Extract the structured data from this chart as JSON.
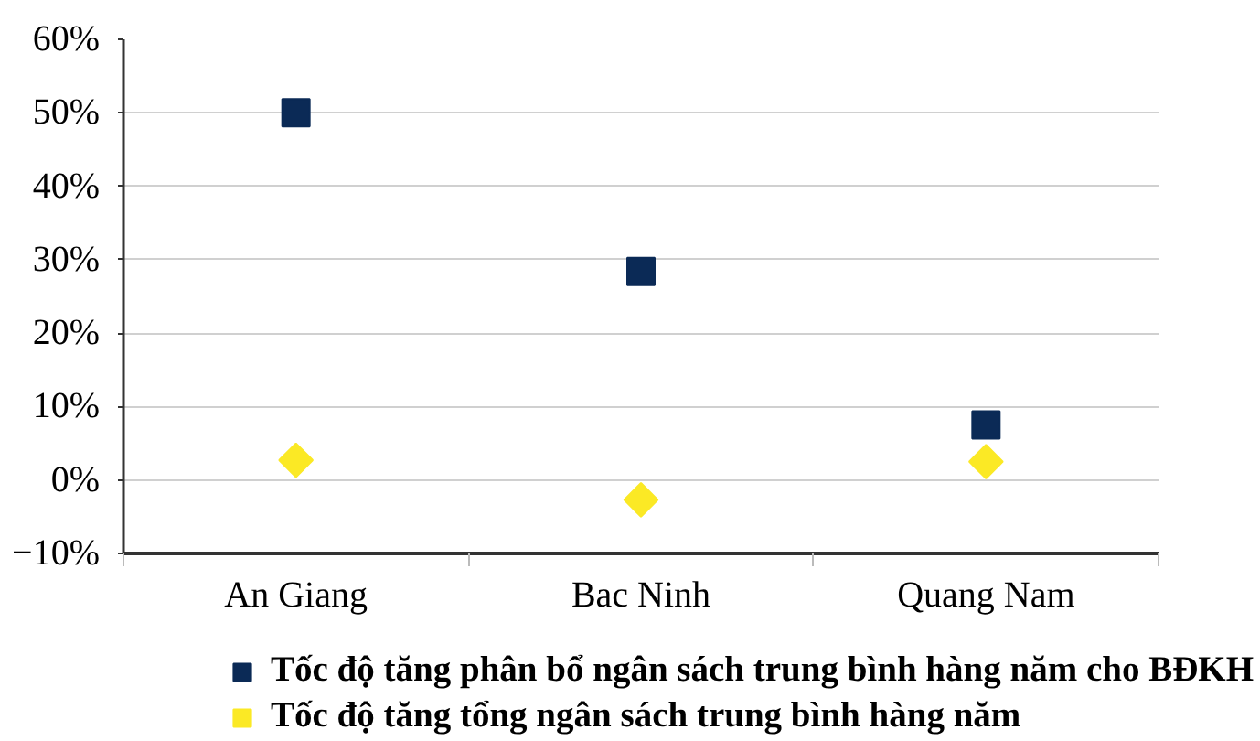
{
  "chart_data": {
    "type": "scatter",
    "categories": [
      "An Giang",
      "Bac Ninh",
      "Quang Nam"
    ],
    "series": [
      {
        "name": "Tốc độ tăng phân bổ ngân sách trung bình hàng năm cho BĐKH",
        "color": "#0b2a56",
        "marker": "square",
        "values": [
          50,
          28.4,
          7.5
        ]
      },
      {
        "name": "Tốc độ tăng tổng ngân sách trung bình hàng năm",
        "color": "#fbe925",
        "marker": "diamond",
        "values": [
          2.7,
          -2.7,
          2.5
        ]
      }
    ],
    "ylim": [
      -10,
      60
    ],
    "yticks": [
      {
        "value": -10,
        "label": "−10%"
      },
      {
        "value": 0,
        "label": "0%"
      },
      {
        "value": 10,
        "label": "10%"
      },
      {
        "value": 20,
        "label": "20%"
      },
      {
        "value": 30,
        "label": "30%"
      },
      {
        "value": 40,
        "label": "40%"
      },
      {
        "value": 50,
        "label": "50%"
      },
      {
        "value": 60,
        "label": "60%"
      }
    ],
    "grid": "y",
    "legend": "bottom"
  }
}
